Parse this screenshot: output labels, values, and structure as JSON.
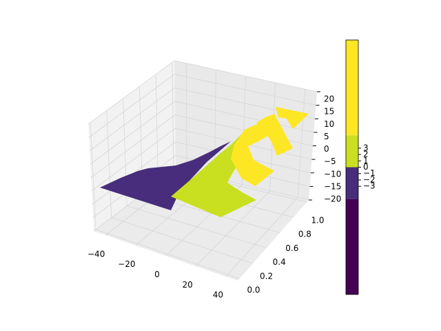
{
  "chart_data": {
    "type": "contour3d",
    "xlim": [
      -48,
      48
    ],
    "xticks": [
      {
        "value": -40,
        "label": "−40"
      },
      {
        "value": -20,
        "label": "−20"
      },
      0,
      20,
      40
    ],
    "ylim": [
      0,
      1
    ],
    "yticks": [
      {
        "value": 0,
        "label": "0.0"
      },
      {
        "value": 0.2,
        "label": "0.2"
      },
      {
        "value": 0.4,
        "label": "0.4"
      },
      {
        "value": 0.6,
        "label": "0.6"
      },
      {
        "value": 0.8,
        "label": "0.8"
      },
      {
        "value": 1,
        "label": "1.0"
      }
    ],
    "zlim": [
      -20,
      20
    ],
    "zticks": [
      {
        "value": -20,
        "label": "−20"
      },
      {
        "value": -15,
        "label": "−15"
      },
      {
        "value": -10,
        "label": "−10"
      },
      {
        "value": -5,
        "label": "−5"
      },
      0,
      5,
      10,
      15,
      20
    ],
    "levels": [
      -20,
      -5,
      0,
      5,
      20
    ],
    "colors": [
      "#440154",
      "#472d7b",
      "#c8e020",
      "#fde725"
    ],
    "colorbar_ticks": [
      {
        "value": -3,
        "label": "−3"
      },
      {
        "value": -2,
        "label": "−2"
      },
      {
        "value": -1,
        "label": "−1"
      },
      0,
      1,
      2,
      3
    ],
    "grid": true
  }
}
